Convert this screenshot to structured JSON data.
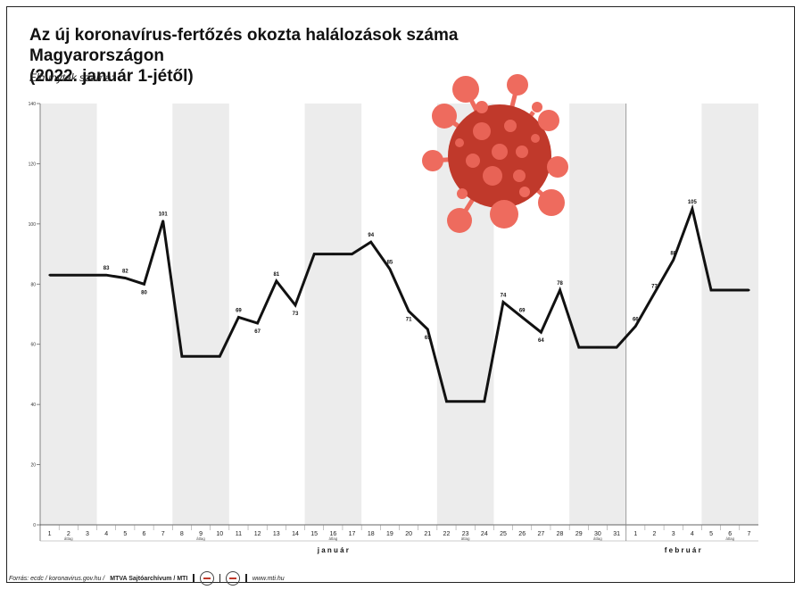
{
  "title_line1": "Az új koronavírus-fertőzés okozta halálozások száma Magyarországon",
  "title_line2": "(2022. január 1-jétől)",
  "ylabel": "Elhunytak száma:",
  "footer": {
    "source": "Forrás: ecdc / koronavirus.gov.hu /",
    "org": "MTVA Sajtóarchívum / MTI",
    "url": "www.mti.hu"
  },
  "colors": {
    "line": "#111111",
    "band": "#ececec",
    "virus_dark": "#c0392b",
    "virus_light": "#ee6b5e"
  },
  "chart_data": {
    "type": "line",
    "ylim": [
      0,
      140
    ],
    "yticks": [
      0,
      20,
      40,
      60,
      80,
      100,
      120,
      140
    ],
    "categories": [
      "1",
      "2",
      "3",
      "4",
      "5",
      "6",
      "7",
      "8",
      "9",
      "10",
      "11",
      "12",
      "13",
      "14",
      "15",
      "16",
      "17",
      "18",
      "19",
      "20",
      "21",
      "22",
      "23",
      "24",
      "25",
      "26",
      "27",
      "28",
      "29",
      "30",
      "31",
      "1",
      "2",
      "3",
      "4",
      "5",
      "6",
      "7"
    ],
    "values": [
      83,
      83,
      83,
      83,
      82,
      80,
      101,
      56,
      56,
      56,
      69,
      67,
      81,
      73,
      90,
      90,
      90,
      94,
      85,
      71,
      65,
      41,
      41,
      41,
      74,
      69,
      64,
      78,
      59,
      59,
      59,
      66,
      77,
      88,
      105,
      78,
      78,
      78
    ],
    "point_labels": [
      "",
      "",
      "",
      "83",
      "82",
      "80",
      "101",
      "",
      "",
      "",
      "69",
      "67",
      "81",
      "73",
      "",
      "",
      "",
      "94",
      "85",
      "71",
      "65",
      "",
      "",
      "",
      "74",
      "69",
      "64",
      "78",
      "",
      "",
      "",
      "66",
      "77",
      "88",
      "105",
      "",
      "",
      ""
    ],
    "label_below": [
      false,
      false,
      false,
      false,
      false,
      true,
      false,
      false,
      false,
      false,
      false,
      true,
      false,
      true,
      false,
      false,
      false,
      false,
      false,
      true,
      true,
      false,
      false,
      false,
      false,
      false,
      true,
      false,
      false,
      false,
      false,
      false,
      false,
      false,
      false,
      false,
      false,
      false
    ],
    "shaded_groups": [
      [
        0,
        2
      ],
      [
        7,
        9
      ],
      [
        14,
        16
      ],
      [
        21,
        23
      ],
      [
        28,
        30
      ],
      [
        35,
        37
      ]
    ],
    "group_label": "átlag",
    "months": [
      {
        "label": "j a n u á r",
        "from": 0,
        "to": 30
      },
      {
        "label": "f e b r u á r",
        "from": 31,
        "to": 37
      }
    ],
    "month_divider_after": 30,
    "grid": false
  }
}
